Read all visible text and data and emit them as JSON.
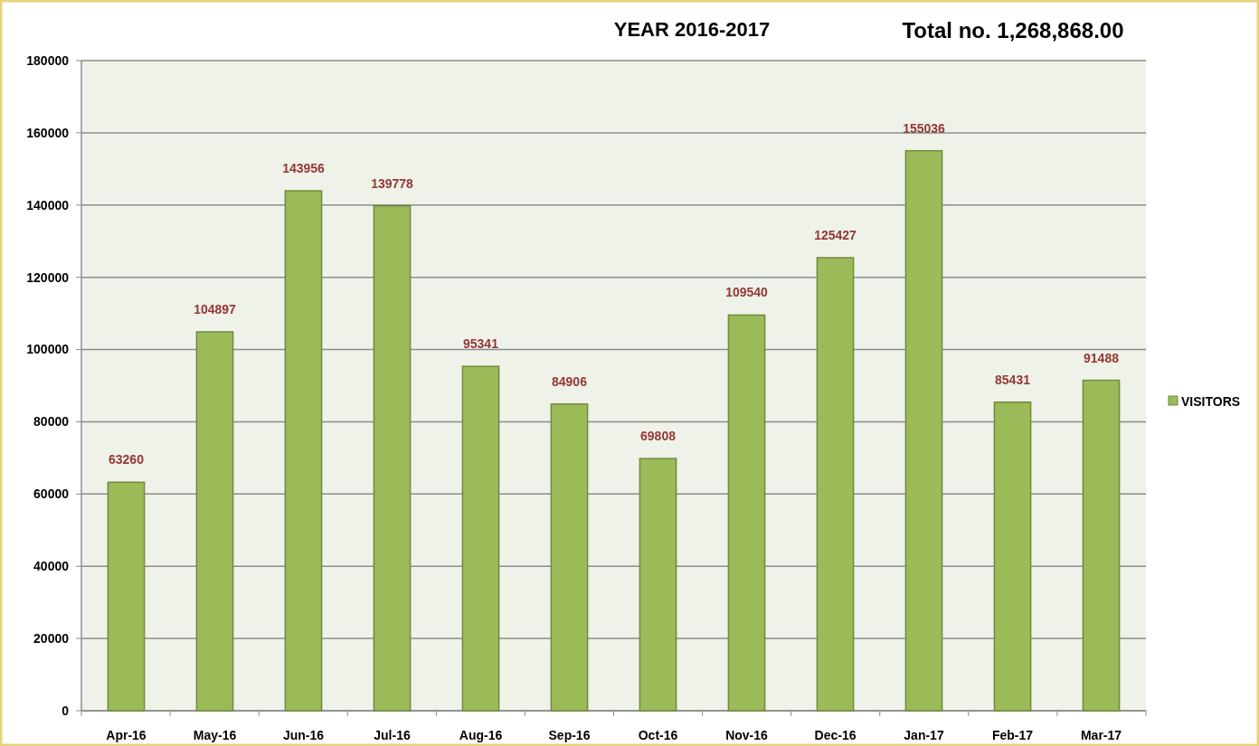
{
  "chart_data": {
    "type": "bar",
    "title": "YEAR  2016-2017",
    "subtitle": "Total no. 1,268,868.00",
    "categories": [
      "Apr-16",
      "May-16",
      "Jun-16",
      "Jul-16",
      "Aug-16",
      "Sep-16",
      "Oct-16",
      "Nov-16",
      "Dec-16",
      "Jan-17",
      "Feb-17",
      "Mar-17"
    ],
    "series": [
      {
        "name": "VISITORS",
        "color": "#9bbb59",
        "values": [
          63260,
          104897,
          143956,
          139778,
          95341,
          84906,
          69808,
          109540,
          125427,
          155036,
          85431,
          91488
        ]
      }
    ],
    "ylim": [
      0,
      180000
    ],
    "yticks": [
      0,
      20000,
      40000,
      60000,
      80000,
      100000,
      120000,
      140000,
      160000,
      180000
    ],
    "grid": "y",
    "legend": "right",
    "data_labels": true
  }
}
